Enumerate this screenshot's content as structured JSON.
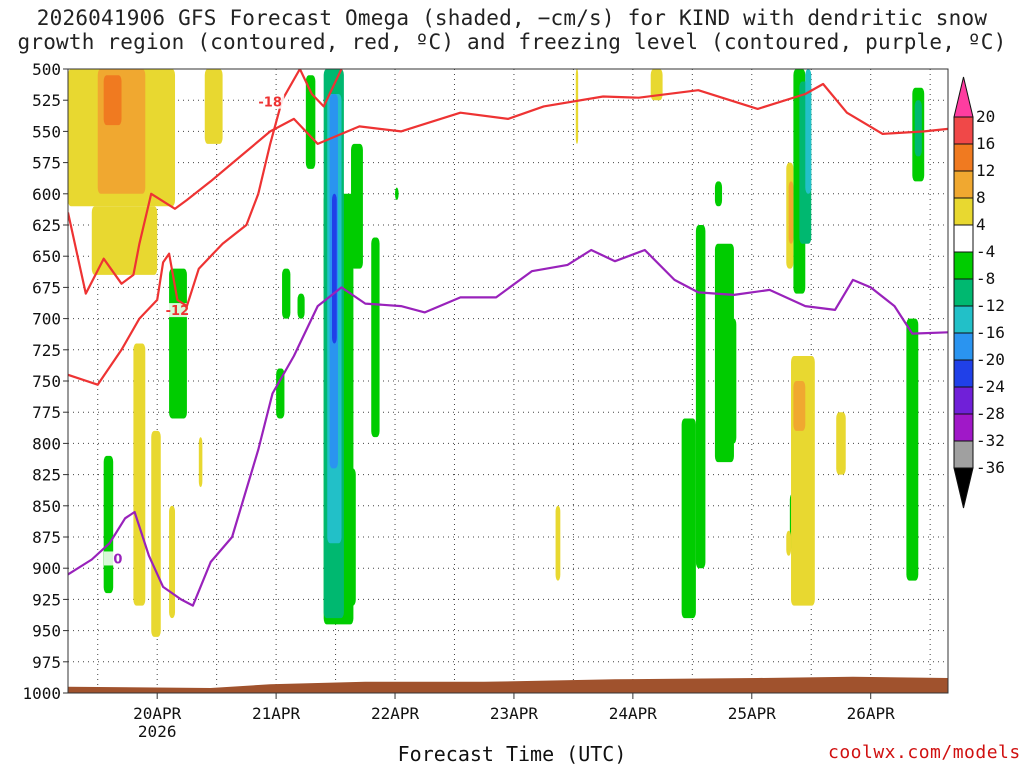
{
  "title_line1": "2026041906 GFS Forecast Omega (shaded, −cm/s) for KIND with dendritic snow",
  "title_line2": "growth region (contoured, red, ºC) and freezing level (contoured, purple, ºC)",
  "xlabel": "Forecast Time (UTC)",
  "credit": "coolwx.com/models",
  "chart_data": {
    "type": "heatmap",
    "x_ticks": [
      {
        "t": 0.75,
        "label": "20APR",
        "sub": "2026"
      },
      {
        "t": 1.75,
        "label": "21APR"
      },
      {
        "t": 2.75,
        "label": "22APR"
      },
      {
        "t": 3.75,
        "label": "23APR"
      },
      {
        "t": 4.75,
        "label": "24APR"
      },
      {
        "t": 5.75,
        "label": "25APR"
      },
      {
        "t": 6.75,
        "label": "26APR"
      }
    ],
    "x_range_days": [
      0,
      7.4
    ],
    "y_levels_hPa": [
      500,
      525,
      550,
      575,
      600,
      625,
      650,
      675,
      700,
      725,
      750,
      775,
      800,
      825,
      850,
      875,
      900,
      925,
      950,
      975,
      1000
    ],
    "y_range_hPa": [
      500,
      1000
    ],
    "colorbar": {
      "labels": [
        "20",
        "16",
        "12",
        "8",
        "4",
        "-4",
        "-8",
        "-12",
        "-16",
        "-20",
        "-24",
        "-28",
        "-32",
        "-36"
      ],
      "colors": [
        "#ff3da0",
        "#f04848",
        "#f07a20",
        "#f0a830",
        "#e8d830",
        "#ffffff",
        "#00cc00",
        "#00b870",
        "#22c0c8",
        "#2a94f0",
        "#2040e8",
        "#7020d8",
        "#a018c8",
        "#a0a0a0",
        "#000000"
      ]
    },
    "shaded_regions": [
      {
        "color": "#e8d830",
        "x": [
          0.0,
          0.9
        ],
        "p": [
          500,
          610
        ]
      },
      {
        "color": "#e8d830",
        "x": [
          0.2,
          0.75
        ],
        "p": [
          610,
          665
        ]
      },
      {
        "color": "#f0a830",
        "x": [
          0.25,
          0.65
        ],
        "p": [
          500,
          600
        ]
      },
      {
        "color": "#f07a20",
        "x": [
          0.3,
          0.45
        ],
        "p": [
          505,
          545
        ]
      },
      {
        "color": "#e8d830",
        "x": [
          1.15,
          1.3
        ],
        "p": [
          500,
          560
        ]
      },
      {
        "color": "#e8d830",
        "x": [
          0.55,
          0.65
        ],
        "p": [
          720,
          930
        ]
      },
      {
        "color": "#e8d830",
        "x": [
          0.7,
          0.78
        ],
        "p": [
          790,
          955
        ]
      },
      {
        "color": "#e8d830",
        "x": [
          0.85,
          0.9
        ],
        "p": [
          850,
          940
        ]
      },
      {
        "color": "#e8d830",
        "x": [
          1.1,
          1.13
        ],
        "p": [
          795,
          835
        ]
      },
      {
        "color": "#00cc00",
        "x": [
          0.85,
          1.0
        ],
        "p": [
          660,
          780
        ]
      },
      {
        "color": "#00cc00",
        "x": [
          0.3,
          0.38
        ],
        "p": [
          810,
          920
        ]
      },
      {
        "color": "#00cc00",
        "x": [
          2.0,
          2.08
        ],
        "p": [
          505,
          580
        ]
      },
      {
        "color": "#00cc00",
        "x": [
          2.15,
          2.4
        ],
        "p": [
          600,
          945
        ]
      },
      {
        "color": "#00cc00",
        "x": [
          2.28,
          2.42
        ],
        "p": [
          820,
          930
        ]
      },
      {
        "color": "#00b870",
        "x": [
          2.15,
          2.32
        ],
        "p": [
          500,
          940
        ]
      },
      {
        "color": "#22c0c8",
        "x": [
          2.18,
          2.3
        ],
        "p": [
          520,
          880
        ]
      },
      {
        "color": "#2a94f0",
        "x": [
          2.2,
          2.27
        ],
        "p": [
          520,
          820
        ]
      },
      {
        "color": "#2040e8",
        "x": [
          2.22,
          2.26
        ],
        "p": [
          600,
          720
        ]
      },
      {
        "color": "#00cc00",
        "x": [
          2.38,
          2.48
        ],
        "p": [
          560,
          660
        ]
      },
      {
        "color": "#00cc00",
        "x": [
          2.55,
          2.62
        ],
        "p": [
          635,
          795
        ]
      },
      {
        "color": "#00cc00",
        "x": [
          2.75,
          2.78
        ],
        "p": [
          595,
          605
        ]
      },
      {
        "color": "#00cc00",
        "x": [
          1.93,
          1.99
        ],
        "p": [
          680,
          700
        ]
      },
      {
        "color": "#00cc00",
        "x": [
          1.8,
          1.87
        ],
        "p": [
          660,
          700
        ]
      },
      {
        "color": "#00cc00",
        "x": [
          1.75,
          1.82
        ],
        "p": [
          740,
          780
        ]
      },
      {
        "color": "#00cc00",
        "x": [
          5.28,
          5.36
        ],
        "p": [
          625,
          900
        ]
      },
      {
        "color": "#00cc00",
        "x": [
          5.16,
          5.28
        ],
        "p": [
          780,
          940
        ]
      },
      {
        "color": "#00cc00",
        "x": [
          5.44,
          5.6
        ],
        "p": [
          640,
          815
        ]
      },
      {
        "color": "#00cc00",
        "x": [
          5.58,
          5.62
        ],
        "p": [
          700,
          800
        ]
      },
      {
        "color": "#00cc00",
        "x": [
          5.44,
          5.5
        ],
        "p": [
          590,
          610
        ]
      },
      {
        "color": "#00cc00",
        "x": [
          6.1,
          6.2
        ],
        "p": [
          500,
          680
        ]
      },
      {
        "color": "#00b870",
        "x": [
          6.15,
          6.25
        ],
        "p": [
          510,
          640
        ]
      },
      {
        "color": "#22c0c8",
        "x": [
          6.2,
          6.25
        ],
        "p": [
          500,
          600
        ]
      },
      {
        "color": "#00cc00",
        "x": [
          6.07,
          6.15
        ],
        "p": [
          840,
          885
        ]
      },
      {
        "color": "#e8d830",
        "x": [
          6.04,
          6.1
        ],
        "p": [
          575,
          660
        ]
      },
      {
        "color": "#f0a830",
        "x": [
          6.06,
          6.1
        ],
        "p": [
          590,
          640
        ]
      },
      {
        "color": "#e8d830",
        "x": [
          6.08,
          6.28
        ],
        "p": [
          730,
          930
        ]
      },
      {
        "color": "#f0a830",
        "x": [
          6.1,
          6.2
        ],
        "p": [
          750,
          790
        ]
      },
      {
        "color": "#e8d830",
        "x": [
          6.46,
          6.54
        ],
        "p": [
          775,
          825
        ]
      },
      {
        "color": "#e8d830",
        "x": [
          6.04,
          6.08
        ],
        "p": [
          870,
          890
        ]
      },
      {
        "color": "#00cc00",
        "x": [
          7.1,
          7.2
        ],
        "p": [
          515,
          590
        ]
      },
      {
        "color": "#00b870",
        "x": [
          7.12,
          7.18
        ],
        "p": [
          525,
          570
        ]
      },
      {
        "color": "#00cc00",
        "x": [
          7.05,
          7.15
        ],
        "p": [
          700,
          910
        ]
      },
      {
        "color": "#e8d830",
        "x": [
          4.9,
          5.0
        ],
        "p": [
          500,
          525
        ]
      },
      {
        "color": "#e8d830",
        "x": [
          4.27,
          4.29
        ],
        "p": [
          500,
          560
        ]
      },
      {
        "color": "#e8d830",
        "x": [
          4.1,
          4.14
        ],
        "p": [
          850,
          910
        ]
      }
    ],
    "contours": [
      {
        "name": "dendritic-low",
        "color": "#ee3333",
        "value_label": "-12",
        "label_at": [
          0.92,
          694
        ],
        "points": [
          [
            0,
            615
          ],
          [
            0.15,
            680
          ],
          [
            0.3,
            652
          ],
          [
            0.45,
            672
          ],
          [
            0.55,
            665
          ],
          [
            0.6,
            640
          ],
          [
            0.7,
            600
          ],
          [
            0.9,
            612
          ],
          [
            1.0,
            605
          ],
          [
            1.2,
            590
          ],
          [
            1.45,
            570
          ],
          [
            1.7,
            550
          ],
          [
            1.9,
            540
          ],
          [
            2.1,
            560
          ],
          [
            2.45,
            546
          ],
          [
            2.8,
            550
          ],
          [
            3.3,
            535
          ],
          [
            3.7,
            540
          ],
          [
            4.0,
            530
          ],
          [
            4.5,
            522
          ],
          [
            4.8,
            523
          ],
          [
            5.3,
            517
          ],
          [
            5.8,
            532
          ],
          [
            6.2,
            520
          ],
          [
            6.35,
            512
          ],
          [
            6.55,
            535
          ],
          [
            6.85,
            552
          ],
          [
            7.2,
            550
          ],
          [
            7.4,
            548
          ]
        ]
      },
      {
        "name": "dendritic-high",
        "color": "#ee3333",
        "value_label": "-18",
        "label_at": [
          1.7,
          527
        ],
        "points": [
          [
            0,
            745
          ],
          [
            0.25,
            753
          ],
          [
            0.45,
            725
          ],
          [
            0.6,
            700
          ],
          [
            0.75,
            685
          ],
          [
            0.8,
            655
          ],
          [
            0.85,
            648
          ],
          [
            0.92,
            685
          ],
          [
            1.0,
            690
          ],
          [
            1.1,
            660
          ],
          [
            1.3,
            640
          ],
          [
            1.5,
            625
          ],
          [
            1.6,
            600
          ],
          [
            1.7,
            560
          ],
          [
            1.8,
            525
          ],
          [
            1.95,
            500
          ],
          [
            2.05,
            520
          ],
          [
            2.15,
            530
          ],
          [
            2.3,
            500
          ]
        ]
      },
      {
        "name": "freezing-level",
        "color": "#9922bb",
        "value_label": "0",
        "label_at": [
          0.42,
          893
        ],
        "points": [
          [
            0,
            905
          ],
          [
            0.2,
            893
          ],
          [
            0.35,
            880
          ],
          [
            0.48,
            860
          ],
          [
            0.56,
            855
          ],
          [
            0.68,
            890
          ],
          [
            0.8,
            915
          ],
          [
            0.95,
            925
          ],
          [
            1.05,
            930
          ],
          [
            1.2,
            895
          ],
          [
            1.38,
            875
          ],
          [
            1.6,
            805
          ],
          [
            1.72,
            760
          ],
          [
            1.9,
            730
          ],
          [
            2.1,
            690
          ],
          [
            2.3,
            675
          ],
          [
            2.5,
            688
          ],
          [
            2.8,
            690
          ],
          [
            3.0,
            695
          ],
          [
            3.3,
            683
          ],
          [
            3.6,
            683
          ],
          [
            3.9,
            662
          ],
          [
            4.2,
            657
          ],
          [
            4.4,
            645
          ],
          [
            4.6,
            654
          ],
          [
            4.85,
            645
          ],
          [
            5.1,
            669
          ],
          [
            5.3,
            679
          ],
          [
            5.6,
            681
          ],
          [
            5.9,
            677
          ],
          [
            6.2,
            690
          ],
          [
            6.45,
            693
          ],
          [
            6.6,
            669
          ],
          [
            6.75,
            675
          ],
          [
            6.95,
            690
          ],
          [
            7.1,
            712
          ],
          [
            7.4,
            711
          ]
        ]
      }
    ],
    "ground_level_hPa": [
      [
        0,
        995
      ],
      [
        1.2,
        996
      ],
      [
        1.7,
        993
      ],
      [
        2.5,
        991
      ],
      [
        3.5,
        991
      ],
      [
        4.6,
        989
      ],
      [
        5.8,
        988
      ],
      [
        6.6,
        987
      ],
      [
        7.4,
        988
      ]
    ]
  }
}
